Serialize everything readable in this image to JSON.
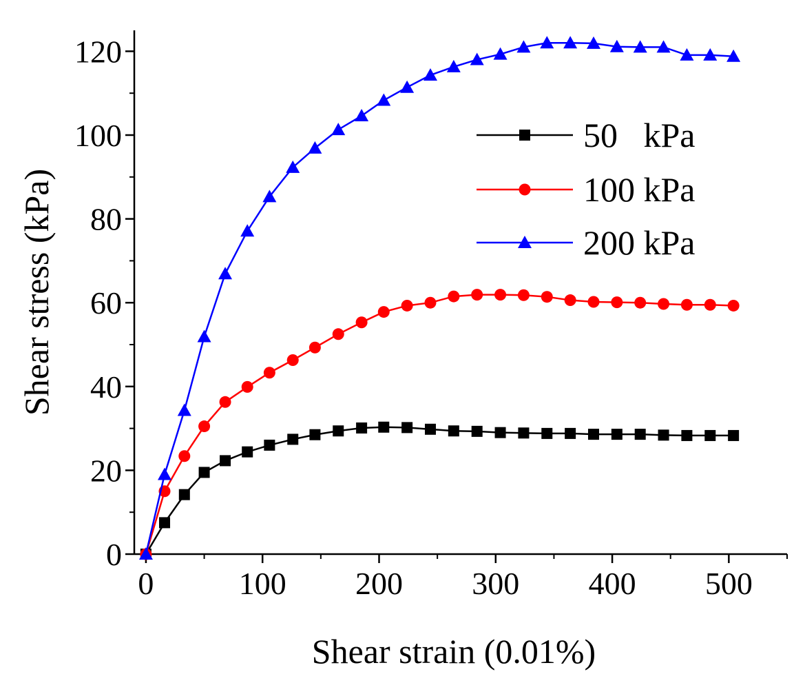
{
  "chart_data": {
    "type": "line",
    "title": "",
    "xlabel": "Shear strain (0.01%)",
    "ylabel": "Shear stress (kPa)",
    "xlim": [
      -10,
      550
    ],
    "ylim": [
      0,
      125
    ],
    "xticks": [
      0,
      100,
      200,
      300,
      400,
      500
    ],
    "yticks": [
      0,
      20,
      40,
      60,
      80,
      100,
      120
    ],
    "xtick_labels": [
      "0",
      "100",
      "200",
      "300",
      "400",
      "500"
    ],
    "ytick_labels": [
      "0",
      "20",
      "40",
      "60",
      "80",
      "100",
      "120"
    ],
    "grid": false,
    "legend_position": "top-right",
    "series": [
      {
        "name": "50   kPa",
        "marker": "square",
        "color": "#000000",
        "x": [
          0,
          16,
          33,
          50,
          68,
          87,
          106,
          126,
          145,
          165,
          185,
          204,
          224,
          244,
          264,
          284,
          304,
          324,
          344,
          364,
          384,
          404,
          424,
          444,
          464,
          484,
          504
        ],
        "y": [
          0,
          7.5,
          14.2,
          19.5,
          22.3,
          24.4,
          26.0,
          27.4,
          28.5,
          29.4,
          30.1,
          30.3,
          30.2,
          29.8,
          29.4,
          29.3,
          29.0,
          28.9,
          28.8,
          28.8,
          28.6,
          28.6,
          28.6,
          28.4,
          28.3,
          28.3,
          28.3
        ]
      },
      {
        "name": "100 kPa",
        "marker": "circle",
        "color": "#ff0000",
        "x": [
          0,
          16,
          33,
          50,
          68,
          87,
          106,
          126,
          145,
          165,
          185,
          204,
          224,
          244,
          264,
          284,
          304,
          324,
          344,
          364,
          384,
          404,
          424,
          444,
          464,
          484,
          504
        ],
        "y": [
          0,
          15.0,
          23.4,
          30.5,
          36.3,
          39.9,
          43.3,
          46.3,
          49.3,
          52.5,
          55.3,
          57.8,
          59.3,
          60.0,
          61.5,
          61.9,
          61.9,
          61.8,
          61.4,
          60.6,
          60.2,
          60.1,
          60.0,
          59.7,
          59.5,
          59.5,
          59.3
        ]
      },
      {
        "name": "200 kPa",
        "marker": "triangle",
        "color": "#0000ff",
        "x": [
          0,
          16,
          33,
          50,
          68,
          87,
          106,
          126,
          145,
          165,
          185,
          204,
          224,
          244,
          264,
          284,
          304,
          324,
          344,
          364,
          384,
          404,
          424,
          444,
          464,
          484,
          504
        ],
        "y": [
          0,
          19.0,
          34.3,
          51.9,
          66.9,
          77.1,
          85.3,
          92.3,
          96.9,
          101.3,
          104.6,
          108.3,
          111.4,
          114.3,
          116.3,
          118.0,
          119.3,
          121.0,
          122.0,
          122.0,
          121.9,
          121.1,
          121.0,
          121.0,
          119.1,
          119.1,
          118.8
        ]
      }
    ]
  }
}
